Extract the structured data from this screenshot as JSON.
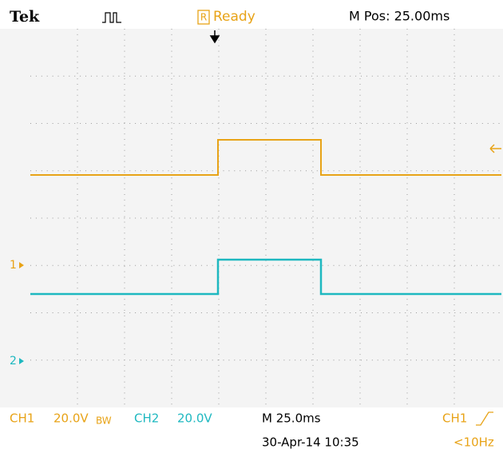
{
  "header": {
    "brand": "Tek",
    "status_icon": "R",
    "status": "Ready",
    "position": "M Pos: 25.00ms"
  },
  "markers": {
    "ch1": "1",
    "ch2": "2"
  },
  "footer": {
    "ch1_label": "CH1",
    "ch1_scale": "20.0V",
    "ch1_bw": "BW",
    "ch2_label": "CH2",
    "ch2_scale": "20.0V",
    "timebase": "M 25.0ms",
    "trigger_source": "CH1",
    "date": "30-Apr-14 10:35",
    "frequency": "<10Hz"
  }
}
